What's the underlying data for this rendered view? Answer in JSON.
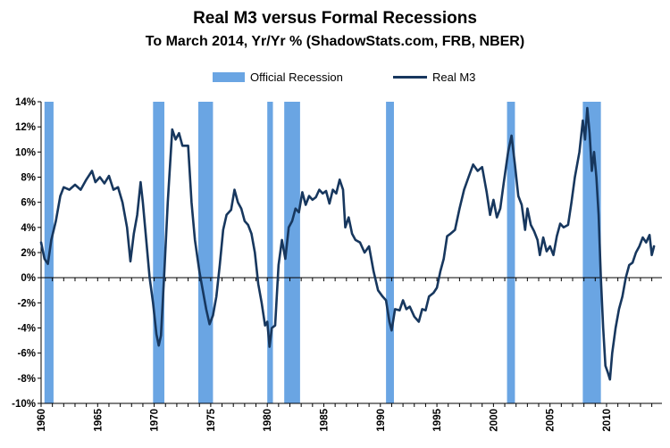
{
  "chart_data": {
    "type": "line",
    "title": "Real M3 versus Formal Recessions",
    "subtitle": "To March 2014, Yr/Yr % (ShadowStats.com, FRB, NBER)",
    "xlabel": "",
    "ylabel": "",
    "xlim": [
      1960,
      2014.9
    ],
    "ylim": [
      -10,
      14
    ],
    "y_ticks": [
      -10,
      -8,
      -6,
      -4,
      -2,
      0,
      2,
      4,
      6,
      8,
      10,
      12,
      14
    ],
    "y_tick_labels": [
      "-10%",
      "-8%",
      "-6%",
      "-4%",
      "-2%",
      "0%",
      "2%",
      "4%",
      "6%",
      "8%",
      "10%",
      "12%",
      "14%"
    ],
    "x_ticks": [
      1960,
      1965,
      1970,
      1975,
      1980,
      1985,
      1990,
      1995,
      2000,
      2005,
      2010
    ],
    "x_tick_labels": [
      "1960",
      "1965",
      "1970",
      "1975",
      "1980",
      "1985",
      "1990",
      "1995",
      "2000",
      "2005",
      "2010"
    ],
    "legend_position": "top",
    "legend": [
      {
        "label": "Official Recession",
        "kind": "band",
        "color": "#6aa5e3"
      },
      {
        "label": "Real M3",
        "kind": "line",
        "color": "#17375e"
      }
    ],
    "recessions": [
      [
        1960.3,
        1961.1
      ],
      [
        1969.9,
        1970.9
      ],
      [
        1973.9,
        1975.2
      ],
      [
        1980.0,
        1980.5
      ],
      [
        1981.5,
        1982.9
      ],
      [
        1990.5,
        1991.2
      ],
      [
        2001.2,
        2001.9
      ],
      [
        2007.9,
        2009.5
      ]
    ],
    "series": [
      {
        "name": "Real M3",
        "color": "#17375e",
        "points": [
          [
            1960.0,
            2.8
          ],
          [
            1960.3,
            1.5
          ],
          [
            1960.6,
            1.1
          ],
          [
            1960.9,
            3.0
          ],
          [
            1961.3,
            4.5
          ],
          [
            1961.7,
            6.5
          ],
          [
            1962.0,
            7.2
          ],
          [
            1962.5,
            7.0
          ],
          [
            1963.0,
            7.4
          ],
          [
            1963.5,
            7.0
          ],
          [
            1964.0,
            7.8
          ],
          [
            1964.5,
            8.5
          ],
          [
            1964.8,
            7.6
          ],
          [
            1965.2,
            8.0
          ],
          [
            1965.6,
            7.5
          ],
          [
            1966.0,
            8.1
          ],
          [
            1966.4,
            7.0
          ],
          [
            1966.8,
            7.2
          ],
          [
            1967.2,
            6.0
          ],
          [
            1967.6,
            4.0
          ],
          [
            1967.9,
            1.3
          ],
          [
            1968.2,
            3.5
          ],
          [
            1968.5,
            5.0
          ],
          [
            1968.8,
            7.6
          ],
          [
            1969.0,
            6.0
          ],
          [
            1969.3,
            3.0
          ],
          [
            1969.6,
            0.0
          ],
          [
            1969.9,
            -2.0
          ],
          [
            1970.2,
            -4.5
          ],
          [
            1970.4,
            -5.4
          ],
          [
            1970.6,
            -4.6
          ],
          [
            1970.9,
            0.5
          ],
          [
            1971.2,
            6.0
          ],
          [
            1971.6,
            11.8
          ],
          [
            1971.9,
            11.0
          ],
          [
            1972.2,
            11.5
          ],
          [
            1972.5,
            10.5
          ],
          [
            1973.0,
            10.5
          ],
          [
            1973.3,
            6.0
          ],
          [
            1973.6,
            3.0
          ],
          [
            1974.0,
            0.5
          ],
          [
            1974.3,
            -1.0
          ],
          [
            1974.6,
            -2.5
          ],
          [
            1974.9,
            -3.7
          ],
          [
            1975.2,
            -3.0
          ],
          [
            1975.5,
            -1.5
          ],
          [
            1975.8,
            1.0
          ],
          [
            1976.1,
            3.8
          ],
          [
            1976.4,
            5.0
          ],
          [
            1976.8,
            5.4
          ],
          [
            1977.1,
            7.0
          ],
          [
            1977.4,
            6.0
          ],
          [
            1977.7,
            5.5
          ],
          [
            1978.0,
            4.5
          ],
          [
            1978.3,
            4.2
          ],
          [
            1978.6,
            3.5
          ],
          [
            1978.9,
            2.0
          ],
          [
            1979.2,
            -0.5
          ],
          [
            1979.5,
            -2.0
          ],
          [
            1979.8,
            -3.8
          ],
          [
            1980.0,
            -3.5
          ],
          [
            1980.2,
            -5.5
          ],
          [
            1980.4,
            -4.0
          ],
          [
            1980.7,
            -3.8
          ],
          [
            1981.0,
            1.0
          ],
          [
            1981.3,
            3.0
          ],
          [
            1981.6,
            1.5
          ],
          [
            1981.9,
            4.0
          ],
          [
            1982.2,
            4.5
          ],
          [
            1982.5,
            5.5
          ],
          [
            1982.8,
            5.2
          ],
          [
            1983.1,
            6.8
          ],
          [
            1983.4,
            5.8
          ],
          [
            1983.7,
            6.5
          ],
          [
            1984.0,
            6.2
          ],
          [
            1984.3,
            6.4
          ],
          [
            1984.6,
            7.0
          ],
          [
            1984.9,
            6.7
          ],
          [
            1985.2,
            6.9
          ],
          [
            1985.5,
            5.9
          ],
          [
            1985.8,
            7.0
          ],
          [
            1986.1,
            6.7
          ],
          [
            1986.4,
            7.8
          ],
          [
            1986.7,
            7.0
          ],
          [
            1986.9,
            4.0
          ],
          [
            1987.2,
            4.8
          ],
          [
            1987.5,
            3.5
          ],
          [
            1987.8,
            3.0
          ],
          [
            1988.2,
            2.8
          ],
          [
            1988.6,
            2.0
          ],
          [
            1989.0,
            2.5
          ],
          [
            1989.4,
            0.5
          ],
          [
            1989.8,
            -1.0
          ],
          [
            1990.2,
            -1.5
          ],
          [
            1990.5,
            -1.8
          ],
          [
            1990.8,
            -3.5
          ],
          [
            1991.0,
            -4.2
          ],
          [
            1991.3,
            -2.5
          ],
          [
            1991.7,
            -2.6
          ],
          [
            1992.0,
            -1.8
          ],
          [
            1992.3,
            -2.5
          ],
          [
            1992.6,
            -2.3
          ],
          [
            1993.0,
            -3.1
          ],
          [
            1993.4,
            -3.5
          ],
          [
            1993.7,
            -2.5
          ],
          [
            1994.0,
            -2.6
          ],
          [
            1994.3,
            -1.5
          ],
          [
            1994.7,
            -1.2
          ],
          [
            1995.0,
            -0.8
          ],
          [
            1995.3,
            0.5
          ],
          [
            1995.6,
            1.5
          ],
          [
            1995.9,
            3.3
          ],
          [
            1996.2,
            3.5
          ],
          [
            1996.6,
            3.8
          ],
          [
            1997.0,
            5.5
          ],
          [
            1997.4,
            7.0
          ],
          [
            1997.8,
            8.0
          ],
          [
            1998.2,
            9.0
          ],
          [
            1998.6,
            8.5
          ],
          [
            1999.0,
            8.8
          ],
          [
            1999.4,
            6.8
          ],
          [
            1999.7,
            5.0
          ],
          [
            2000.0,
            6.2
          ],
          [
            2000.3,
            4.8
          ],
          [
            2000.6,
            5.5
          ],
          [
            2000.9,
            7.5
          ],
          [
            2001.3,
            10.0
          ],
          [
            2001.6,
            11.3
          ],
          [
            2001.9,
            9.0
          ],
          [
            2002.2,
            6.5
          ],
          [
            2002.5,
            5.8
          ],
          [
            2002.8,
            3.8
          ],
          [
            2003.0,
            5.5
          ],
          [
            2003.3,
            4.2
          ],
          [
            2003.6,
            3.7
          ],
          [
            2003.9,
            3.0
          ],
          [
            2004.1,
            1.8
          ],
          [
            2004.4,
            3.2
          ],
          [
            2004.7,
            2.1
          ],
          [
            2005.0,
            2.5
          ],
          [
            2005.3,
            1.8
          ],
          [
            2005.6,
            3.3
          ],
          [
            2005.9,
            4.3
          ],
          [
            2006.2,
            4.0
          ],
          [
            2006.6,
            4.2
          ],
          [
            2006.9,
            6.0
          ],
          [
            2007.2,
            8.0
          ],
          [
            2007.6,
            10.0
          ],
          [
            2007.9,
            12.5
          ],
          [
            2008.1,
            11.0
          ],
          [
            2008.3,
            13.5
          ],
          [
            2008.5,
            11.5
          ],
          [
            2008.7,
            8.5
          ],
          [
            2008.9,
            10.0
          ],
          [
            2009.1,
            8.0
          ],
          [
            2009.3,
            5.0
          ],
          [
            2009.5,
            0.0
          ],
          [
            2009.7,
            -4.0
          ],
          [
            2009.9,
            -7.0
          ],
          [
            2010.1,
            -7.5
          ],
          [
            2010.3,
            -8.1
          ],
          [
            2010.5,
            -6.0
          ],
          [
            2010.8,
            -4.0
          ],
          [
            2011.1,
            -2.5
          ],
          [
            2011.4,
            -1.5
          ],
          [
            2011.7,
            0.0
          ],
          [
            2012.0,
            1.0
          ],
          [
            2012.3,
            1.2
          ],
          [
            2012.6,
            2.0
          ],
          [
            2012.9,
            2.5
          ],
          [
            2013.2,
            3.2
          ],
          [
            2013.5,
            2.8
          ],
          [
            2013.8,
            3.4
          ],
          [
            2014.0,
            1.8
          ],
          [
            2014.2,
            2.5
          ]
        ]
      }
    ]
  }
}
